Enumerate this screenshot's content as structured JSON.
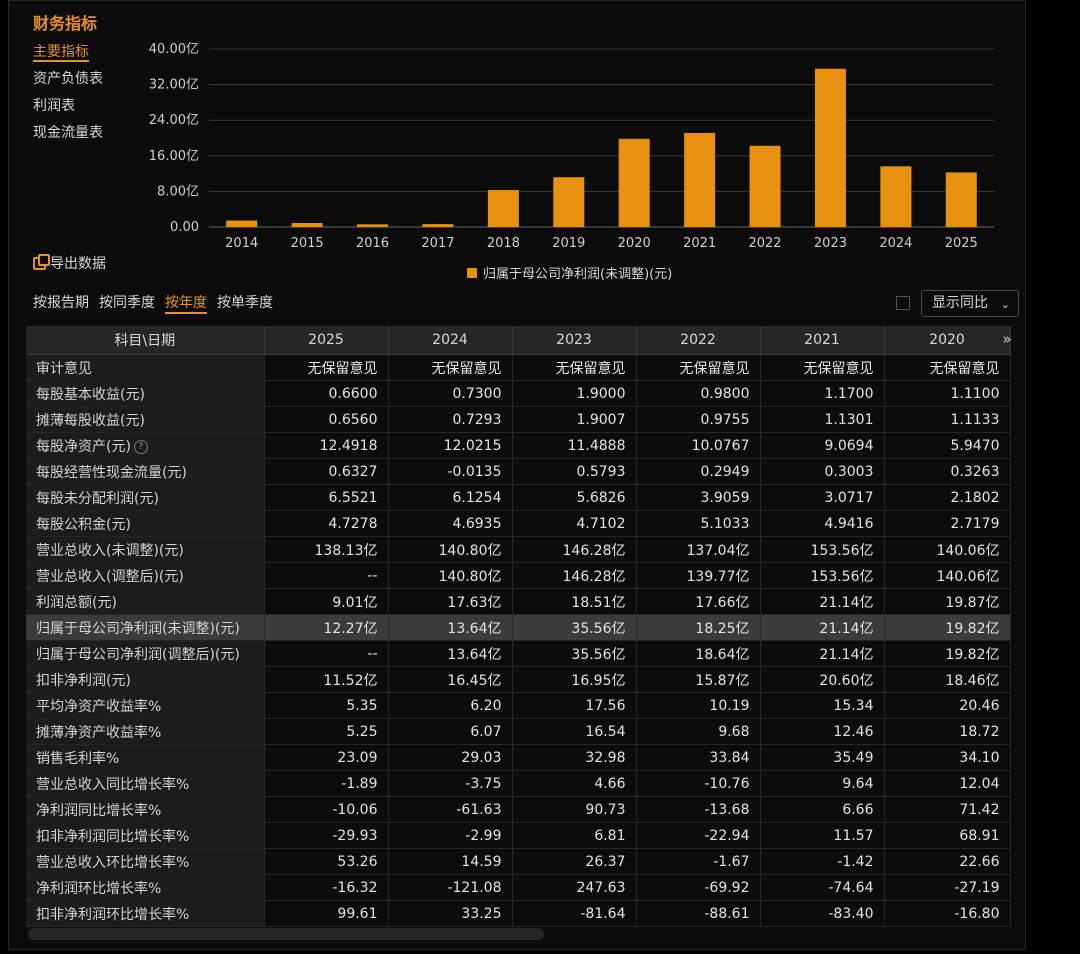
{
  "header": {
    "title": "财务指标"
  },
  "side_menu": [
    "主要指标",
    "资产负债表",
    "利润表",
    "现金流量表"
  ],
  "export_label": "导出数据",
  "chart_data": {
    "type": "bar",
    "categories": [
      "2014",
      "2015",
      "2016",
      "2017",
      "2018",
      "2019",
      "2020",
      "2021",
      "2022",
      "2023",
      "2024",
      "2025"
    ],
    "values": [
      1.45,
      0.9,
      0.6,
      0.65,
      8.3,
      11.2,
      19.82,
      21.14,
      18.25,
      35.56,
      13.64,
      12.27
    ],
    "ylim": [
      0,
      40
    ],
    "yticks": [
      "0.00",
      "8.00亿",
      "16.00亿",
      "24.00亿",
      "32.00亿",
      "40.00亿"
    ],
    "legend": "归属于母公司净利润(未调整)(元)",
    "color": "#e8900f",
    "grid": true
  },
  "period_tabs": [
    "按报告期",
    "按同季度",
    "按年度",
    "按单季度"
  ],
  "active_tab": "按年度",
  "yoy_select": "显示同比",
  "table": {
    "header": [
      "科目\\日期",
      "2025",
      "2024",
      "2023",
      "2022",
      "2021",
      "2020"
    ],
    "more_icon": "»",
    "rows": [
      [
        "审计意见",
        "无保留意见",
        "无保留意见",
        "无保留意见",
        "无保留意见",
        "无保留意见",
        "无保留意见"
      ],
      [
        "每股基本收益(元)",
        "0.6600",
        "0.7300",
        "1.9000",
        "0.9800",
        "1.1700",
        "1.1100"
      ],
      [
        "摊薄每股收益(元)",
        "0.6560",
        "0.7293",
        "1.9007",
        "0.9755",
        "1.1301",
        "1.1133"
      ],
      [
        "每股净资产(元)",
        "12.4918",
        "12.0215",
        "11.4888",
        "10.0767",
        "9.0694",
        "5.9470"
      ],
      [
        "每股经营性现金流量(元)",
        "0.6327",
        "-0.0135",
        "0.5793",
        "0.2949",
        "0.3003",
        "0.3263"
      ],
      [
        "每股未分配利润(元)",
        "6.5521",
        "6.1254",
        "5.6826",
        "3.9059",
        "3.0717",
        "2.1802"
      ],
      [
        "每股公积金(元)",
        "4.7278",
        "4.6935",
        "4.7102",
        "5.1033",
        "4.9416",
        "2.7179"
      ],
      [
        "营业总收入(未调整)(元)",
        "138.13亿",
        "140.80亿",
        "146.28亿",
        "137.04亿",
        "153.56亿",
        "140.06亿"
      ],
      [
        "营业总收入(调整后)(元)",
        "--",
        "140.80亿",
        "146.28亿",
        "139.77亿",
        "153.56亿",
        "140.06亿"
      ],
      [
        "利润总额(元)",
        "9.01亿",
        "17.63亿",
        "18.51亿",
        "17.66亿",
        "21.14亿",
        "19.87亿"
      ],
      [
        "归属于母公司净利润(未调整)(元)",
        "12.27亿",
        "13.64亿",
        "35.56亿",
        "18.25亿",
        "21.14亿",
        "19.82亿"
      ],
      [
        "归属于母公司净利润(调整后)(元)",
        "--",
        "13.64亿",
        "35.56亿",
        "18.64亿",
        "21.14亿",
        "19.82亿"
      ],
      [
        "扣非净利润(元)",
        "11.52亿",
        "16.45亿",
        "16.95亿",
        "15.87亿",
        "20.60亿",
        "18.46亿"
      ],
      [
        "平均净资产收益率%",
        "5.35",
        "6.20",
        "17.56",
        "10.19",
        "15.34",
        "20.46"
      ],
      [
        "摊薄净资产收益率%",
        "5.25",
        "6.07",
        "16.54",
        "9.68",
        "12.46",
        "18.72"
      ],
      [
        "销售毛利率%",
        "23.09",
        "29.03",
        "32.98",
        "33.84",
        "35.49",
        "34.10"
      ],
      [
        "营业总收入同比增长率%",
        "-1.89",
        "-3.75",
        "4.66",
        "-10.76",
        "9.64",
        "12.04"
      ],
      [
        "净利润同比增长率%",
        "-10.06",
        "-61.63",
        "90.73",
        "-13.68",
        "6.66",
        "71.42"
      ],
      [
        "扣非净利润同比增长率%",
        "-29.93",
        "-2.99",
        "6.81",
        "-22.94",
        "11.57",
        "68.91"
      ],
      [
        "营业总收入环比增长率%",
        "53.26",
        "14.59",
        "26.37",
        "-1.67",
        "-1.42",
        "22.66"
      ],
      [
        "净利润环比增长率%",
        "-16.32",
        "-121.08",
        "247.63",
        "-69.92",
        "-74.64",
        "-27.19"
      ],
      [
        "扣非净利润环比增长率%",
        "99.61",
        "33.25",
        "-81.64",
        "-88.61",
        "-83.40",
        "-16.80"
      ]
    ]
  }
}
